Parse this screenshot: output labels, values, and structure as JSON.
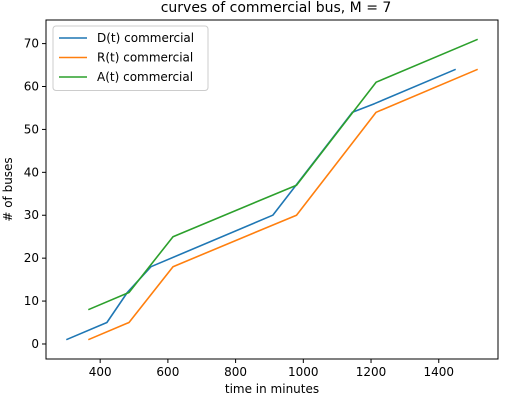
{
  "chart_data": {
    "type": "line",
    "title": "curves of commercial bus, M = 7",
    "xlabel": "time in minutes",
    "ylabel": "# of buses",
    "xlim": [
      240,
      1575
    ],
    "ylim": [
      -3.5,
      75.5
    ],
    "xticks": [
      400,
      600,
      800,
      1000,
      1200,
      1400
    ],
    "yticks": [
      0,
      10,
      20,
      30,
      40,
      50,
      60,
      70
    ],
    "grid": false,
    "legend": "top-left",
    "series": [
      {
        "name": "D(t) commercial",
        "color": "#1f77b4",
        "x": [
          300,
          420,
          480,
          550,
          910,
          1145,
          1210,
          1450
        ],
        "y": [
          1,
          5,
          12,
          18,
          30,
          54,
          56,
          64
        ]
      },
      {
        "name": "R(t) commercial",
        "color": "#ff7f0e",
        "x": [
          365,
          485,
          615,
          980,
          1215,
          1515
        ],
        "y": [
          1,
          5,
          18,
          30,
          54,
          64
        ]
      },
      {
        "name": "A(t) commercial",
        "color": "#2ca02c",
        "x": [
          365,
          485,
          615,
          980,
          1215,
          1515
        ],
        "y": [
          8,
          12,
          25,
          37,
          61,
          71
        ]
      }
    ]
  }
}
